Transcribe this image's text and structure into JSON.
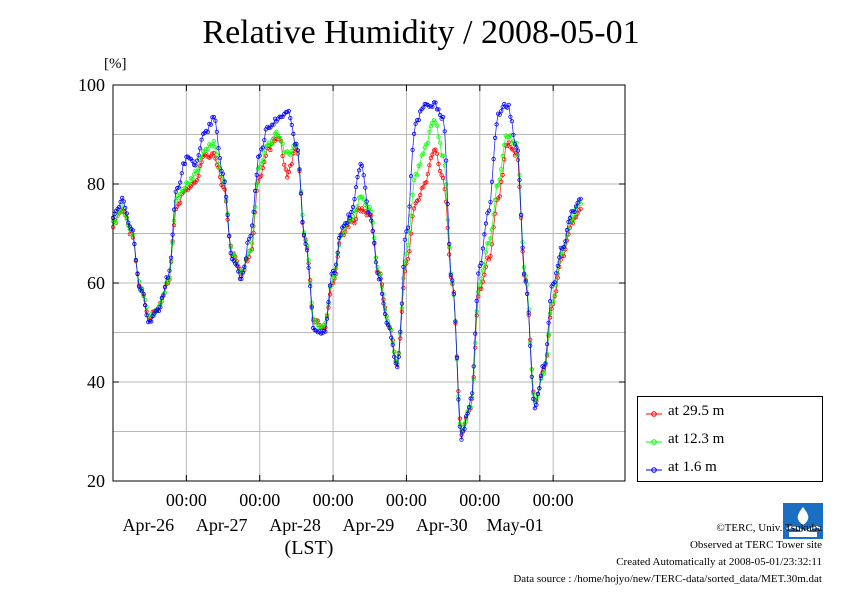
{
  "title": "Relative Humidity / 2008-05-01",
  "unit_label": "[%]",
  "xaxis_label": "(LST)",
  "footer": {
    "copyright": "©TERC, Univ. Tsukuba",
    "site": "Observed at TERC Tower site",
    "created": "Created Automatically at 2008-05-01/23:32:11",
    "source": "Data source : /home/hojyo/new/TERC-data/sorted_data/MET.30m.dat"
  },
  "chart_data": {
    "type": "line",
    "title": "Relative Humidity / 2008-05-01",
    "ylabel": "[%]",
    "xlabel": "(LST)",
    "ylim": [
      20,
      100
    ],
    "yticks": [
      20,
      40,
      60,
      80,
      100
    ],
    "xlim": [
      "2008-04-25 00:00",
      "2008-05-01 23:30"
    ],
    "xticks": [
      {
        "time": "2008-04-26 00:00",
        "label": "00:00",
        "date": "Apr-26"
      },
      {
        "time": "2008-04-27 00:00",
        "label": "00:00",
        "date": "Apr-27"
      },
      {
        "time": "2008-04-28 00:00",
        "label": "00:00",
        "date": "Apr-28"
      },
      {
        "time": "2008-04-29 00:00",
        "label": "00:00",
        "date": "Apr-29"
      },
      {
        "time": "2008-04-30 00:00",
        "label": "00:00",
        "date": "Apr-30"
      },
      {
        "time": "2008-05-01 00:00",
        "label": "00:00",
        "date": "May-01"
      }
    ],
    "grid": true,
    "legend_position": "bottom-right, outside plot",
    "series": [
      {
        "name": "at 29.5 m",
        "color": "#ff0000",
        "points": [
          [
            "2008-04-25 00:00",
            72
          ],
          [
            "2008-04-25 03:00",
            75
          ],
          [
            "2008-04-25 06:00",
            70
          ],
          [
            "2008-04-25 09:00",
            59
          ],
          [
            "2008-04-25 12:00",
            53
          ],
          [
            "2008-04-25 15:00",
            55
          ],
          [
            "2008-04-25 18:00",
            60
          ],
          [
            "2008-04-25 21:00",
            76
          ],
          [
            "2008-04-26 00:00",
            79
          ],
          [
            "2008-04-26 03:00",
            81
          ],
          [
            "2008-04-26 06:00",
            86
          ],
          [
            "2008-04-26 09:00",
            86
          ],
          [
            "2008-04-26 12:00",
            80
          ],
          [
            "2008-04-26 15:00",
            66
          ],
          [
            "2008-04-26 18:00",
            62
          ],
          [
            "2008-04-26 21:00",
            66
          ],
          [
            "2008-04-27 00:00",
            82
          ],
          [
            "2008-04-27 03:00",
            87
          ],
          [
            "2008-04-27 06:00",
            90
          ],
          [
            "2008-04-27 09:00",
            82
          ],
          [
            "2008-04-27 12:00",
            87
          ],
          [
            "2008-04-27 15:00",
            68
          ],
          [
            "2008-04-27 18:00",
            52
          ],
          [
            "2008-04-27 21:00",
            51
          ],
          [
            "2008-04-28 00:00",
            60
          ],
          [
            "2008-04-28 03:00",
            70
          ],
          [
            "2008-04-28 06:00",
            72
          ],
          [
            "2008-04-28 09:00",
            75
          ],
          [
            "2008-04-28 12:00",
            74
          ],
          [
            "2008-04-28 15:00",
            62
          ],
          [
            "2008-04-28 18:00",
            52
          ],
          [
            "2008-04-28 21:00",
            44
          ],
          [
            "2008-04-29 00:00",
            64
          ],
          [
            "2008-04-29 03:00",
            76
          ],
          [
            "2008-04-29 06:00",
            80
          ],
          [
            "2008-04-29 09:00",
            87
          ],
          [
            "2008-04-29 12:00",
            81
          ],
          [
            "2008-04-29 15:00",
            60
          ],
          [
            "2008-04-29 18:00",
            30
          ],
          [
            "2008-04-29 21:00",
            35
          ],
          [
            "2008-04-30 00:00",
            59
          ],
          [
            "2008-04-30 03:00",
            65
          ],
          [
            "2008-04-30 06:00",
            77
          ],
          [
            "2008-04-30 09:00",
            88
          ],
          [
            "2008-04-30 12:00",
            86
          ],
          [
            "2008-04-30 15:00",
            60
          ],
          [
            "2008-04-30 18:00",
            36
          ],
          [
            "2008-04-30 21:00",
            42
          ],
          [
            "2008-05-01 00:00",
            56
          ],
          [
            "2008-05-01 03:00",
            65
          ],
          [
            "2008-05-01 06:00",
            72
          ],
          [
            "2008-05-01 09:00",
            75
          ]
        ]
      },
      {
        "name": "at 12.3 m",
        "color": "#00ff00",
        "points": [
          [
            "2008-04-25 00:00",
            72
          ],
          [
            "2008-04-25 03:00",
            75
          ],
          [
            "2008-04-25 06:00",
            70
          ],
          [
            "2008-04-25 09:00",
            59
          ],
          [
            "2008-04-25 12:00",
            53
          ],
          [
            "2008-04-25 15:00",
            55
          ],
          [
            "2008-04-25 18:00",
            60
          ],
          [
            "2008-04-25 21:00",
            77
          ],
          [
            "2008-04-26 00:00",
            80
          ],
          [
            "2008-04-26 03:00",
            82
          ],
          [
            "2008-04-26 06:00",
            87
          ],
          [
            "2008-04-26 09:00",
            88
          ],
          [
            "2008-04-26 12:00",
            81
          ],
          [
            "2008-04-26 15:00",
            66
          ],
          [
            "2008-04-26 18:00",
            62
          ],
          [
            "2008-04-26 21:00",
            67
          ],
          [
            "2008-04-27 00:00",
            84
          ],
          [
            "2008-04-27 03:00",
            88
          ],
          [
            "2008-04-27 06:00",
            90
          ],
          [
            "2008-04-27 09:00",
            86
          ],
          [
            "2008-04-27 12:00",
            88
          ],
          [
            "2008-04-27 15:00",
            69
          ],
          [
            "2008-04-27 18:00",
            52
          ],
          [
            "2008-04-27 21:00",
            51
          ],
          [
            "2008-04-28 00:00",
            61
          ],
          [
            "2008-04-28 03:00",
            70
          ],
          [
            "2008-04-28 06:00",
            73
          ],
          [
            "2008-04-28 09:00",
            77
          ],
          [
            "2008-04-28 12:00",
            75
          ],
          [
            "2008-04-28 15:00",
            62
          ],
          [
            "2008-04-28 18:00",
            52
          ],
          [
            "2008-04-28 21:00",
            44
          ],
          [
            "2008-04-29 00:00",
            66
          ],
          [
            "2008-04-29 03:00",
            82
          ],
          [
            "2008-04-29 06:00",
            87
          ],
          [
            "2008-04-29 09:00",
            93
          ],
          [
            "2008-04-29 12:00",
            86
          ],
          [
            "2008-04-29 15:00",
            60
          ],
          [
            "2008-04-29 18:00",
            30
          ],
          [
            "2008-04-29 21:00",
            35
          ],
          [
            "2008-04-30 00:00",
            60
          ],
          [
            "2008-04-30 03:00",
            68
          ],
          [
            "2008-04-30 06:00",
            80
          ],
          [
            "2008-04-30 09:00",
            90
          ],
          [
            "2008-04-30 12:00",
            88
          ],
          [
            "2008-04-30 15:00",
            61
          ],
          [
            "2008-04-30 18:00",
            36
          ],
          [
            "2008-04-30 21:00",
            42
          ],
          [
            "2008-05-01 00:00",
            57
          ],
          [
            "2008-05-01 03:00",
            66
          ],
          [
            "2008-05-01 06:00",
            73
          ],
          [
            "2008-05-01 09:00",
            76
          ]
        ]
      },
      {
        "name": "at 1.6 m",
        "color": "#0000ff",
        "points": [
          [
            "2008-04-25 00:00",
            73
          ],
          [
            "2008-04-25 03:00",
            77
          ],
          [
            "2008-04-25 06:00",
            71
          ],
          [
            "2008-04-25 09:00",
            59
          ],
          [
            "2008-04-25 12:00",
            52
          ],
          [
            "2008-04-25 15:00",
            55
          ],
          [
            "2008-04-25 18:00",
            61
          ],
          [
            "2008-04-25 21:00",
            79
          ],
          [
            "2008-04-26 00:00",
            85
          ],
          [
            "2008-04-26 03:00",
            84
          ],
          [
            "2008-04-26 06:00",
            90
          ],
          [
            "2008-04-26 09:00",
            93
          ],
          [
            "2008-04-26 12:00",
            82
          ],
          [
            "2008-04-26 15:00",
            65
          ],
          [
            "2008-04-26 18:00",
            61
          ],
          [
            "2008-04-26 21:00",
            70
          ],
          [
            "2008-04-27 00:00",
            86
          ],
          [
            "2008-04-27 03:00",
            92
          ],
          [
            "2008-04-27 06:00",
            93
          ],
          [
            "2008-04-27 09:00",
            95
          ],
          [
            "2008-04-27 12:00",
            88
          ],
          [
            "2008-04-27 15:00",
            68
          ],
          [
            "2008-04-27 18:00",
            50
          ],
          [
            "2008-04-27 21:00",
            50
          ],
          [
            "2008-04-28 00:00",
            62
          ],
          [
            "2008-04-28 03:00",
            71
          ],
          [
            "2008-04-28 06:00",
            74
          ],
          [
            "2008-04-28 09:00",
            84
          ],
          [
            "2008-04-28 12:00",
            74
          ],
          [
            "2008-04-28 15:00",
            61
          ],
          [
            "2008-04-28 18:00",
            51
          ],
          [
            "2008-04-28 21:00",
            43
          ],
          [
            "2008-04-29 00:00",
            70
          ],
          [
            "2008-04-29 03:00",
            92
          ],
          [
            "2008-04-29 06:00",
            96
          ],
          [
            "2008-04-29 09:00",
            96
          ],
          [
            "2008-04-29 12:00",
            93
          ],
          [
            "2008-04-29 15:00",
            60
          ],
          [
            "2008-04-29 18:00",
            29
          ],
          [
            "2008-04-29 21:00",
            36
          ],
          [
            "2008-04-30 00:00",
            64
          ],
          [
            "2008-04-30 03:00",
            75
          ],
          [
            "2008-04-30 06:00",
            94
          ],
          [
            "2008-04-30 09:00",
            96
          ],
          [
            "2008-04-30 12:00",
            88
          ],
          [
            "2008-04-30 15:00",
            60
          ],
          [
            "2008-04-30 18:00",
            35
          ],
          [
            "2008-04-30 21:00",
            43
          ],
          [
            "2008-05-01 00:00",
            60
          ],
          [
            "2008-05-01 03:00",
            67
          ],
          [
            "2008-05-01 06:00",
            74
          ],
          [
            "2008-05-01 09:00",
            77
          ]
        ]
      }
    ]
  }
}
